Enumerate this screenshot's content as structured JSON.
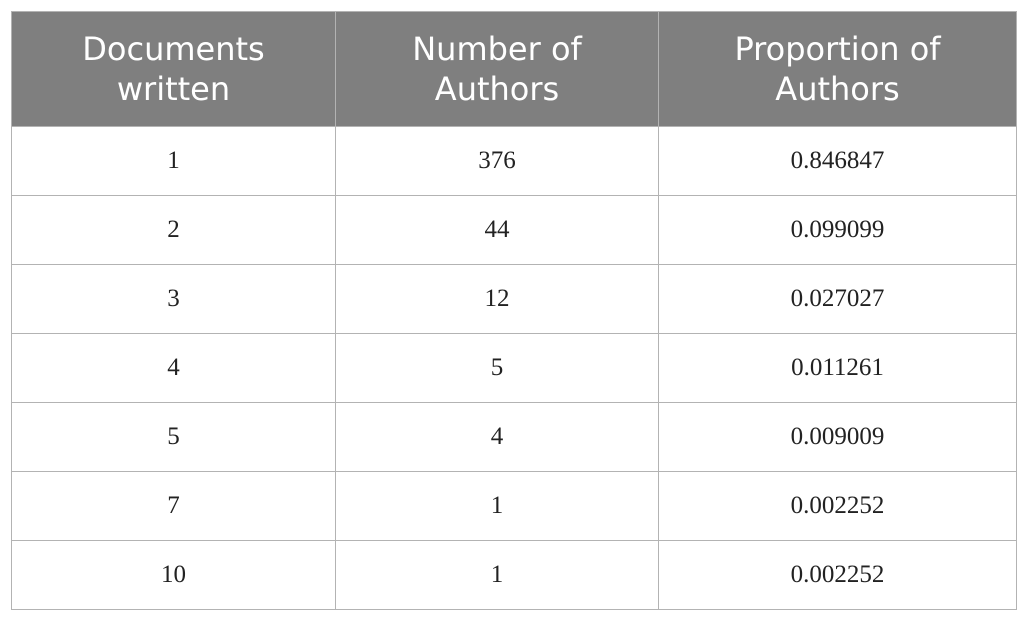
{
  "table": {
    "header": [
      "Documents written",
      "Number of Authors",
      "Proportion of Authors"
    ],
    "rows": [
      [
        1,
        376,
        0.846847
      ],
      [
        2,
        44,
        0.099099
      ],
      [
        3,
        12,
        0.027027
      ],
      [
        4,
        5,
        0.011261
      ],
      [
        5,
        4,
        0.009009
      ],
      [
        7,
        1,
        0.002252
      ],
      [
        10,
        1,
        0.002252
      ]
    ]
  }
}
